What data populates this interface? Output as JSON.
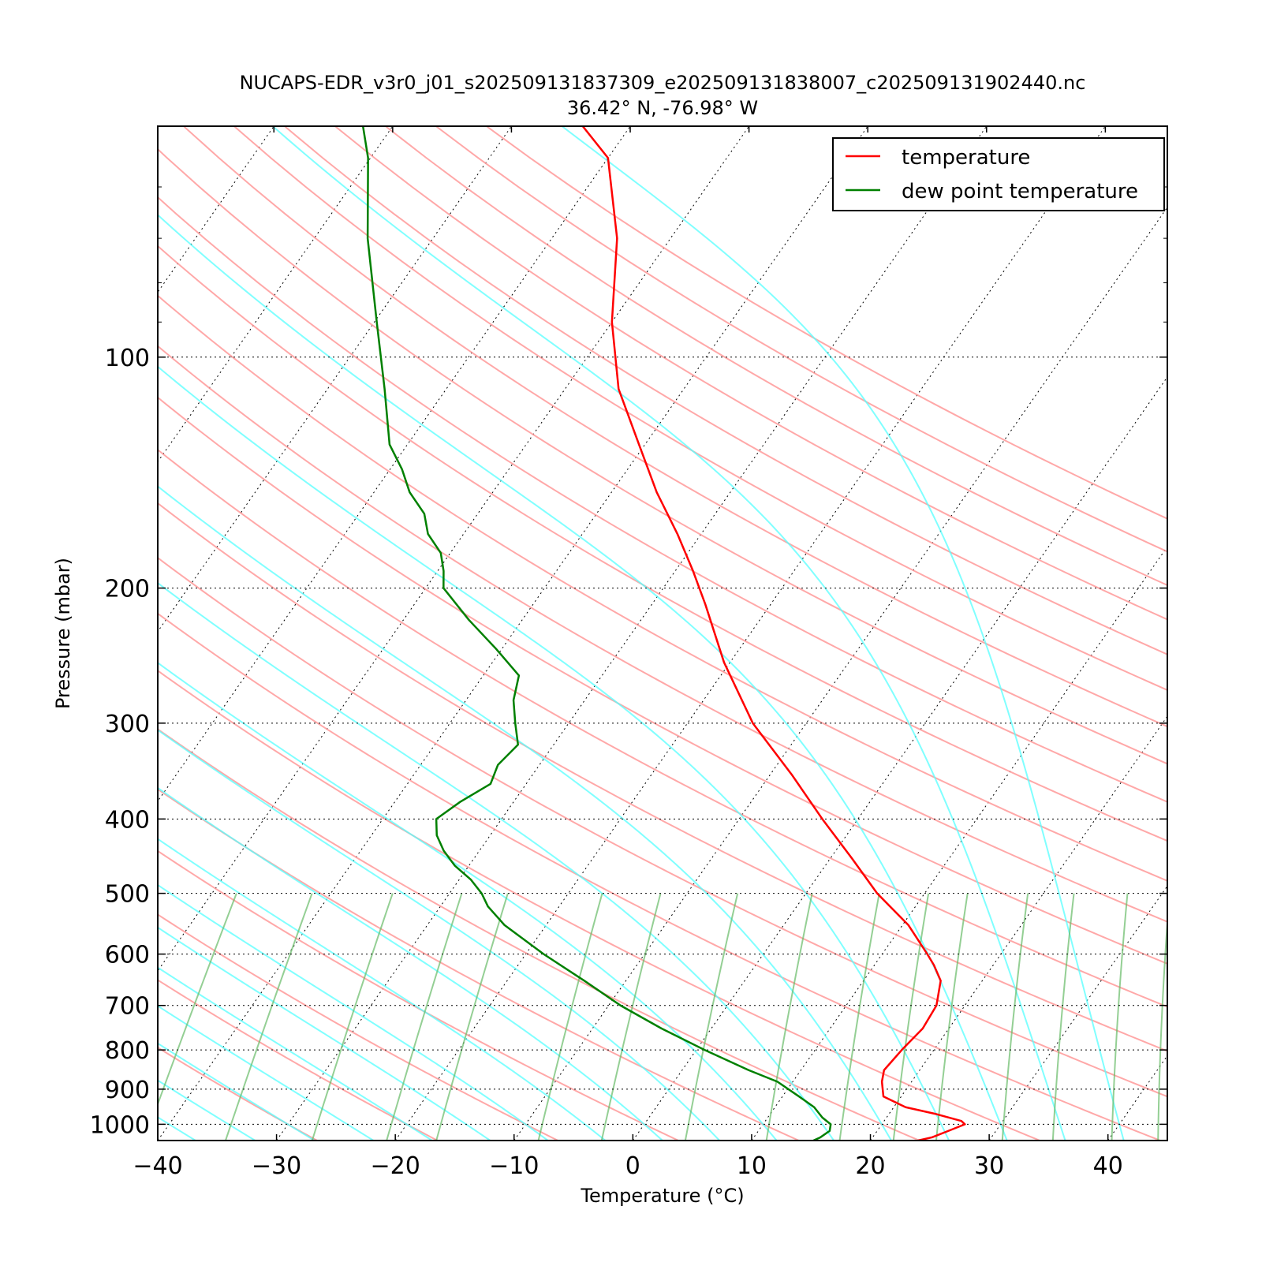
{
  "chart_data": {
    "type": "line",
    "title": "NUCAPS-EDR_v3r0_j01_s202509131837309_e202509131838007_c202509131902440.nc",
    "subtitle": "36.42° N, -76.98° W",
    "xlabel": "Temperature (°C)",
    "ylabel": "Pressure (mbar)",
    "xlim": [
      -40,
      45
    ],
    "ylim": [
      1050,
      50
    ],
    "y_scale": "log",
    "x_ticks": [
      -40,
      -30,
      -20,
      -10,
      0,
      10,
      20,
      30,
      40
    ],
    "x_tick_labels": [
      "−40",
      "−30",
      "−20",
      "−10",
      "0",
      "10",
      "20",
      "30",
      "40"
    ],
    "y_ticks": [
      100,
      200,
      300,
      400,
      500,
      600,
      700,
      800,
      900,
      1000
    ],
    "y_tick_labels": [
      "100",
      "200",
      "300",
      "400",
      "500",
      "600",
      "700",
      "800",
      "900",
      "1000"
    ],
    "legend_position": "top-right",
    "series": [
      {
        "name": "temperature",
        "color": "#ff0000",
        "pressure": [
          1050,
          1040,
          1020,
          1000,
          990,
          970,
          950,
          920,
          880,
          850,
          800,
          750,
          700,
          650,
          620,
          600,
          550,
          500,
          450,
          400,
          350,
          300,
          250,
          210,
          190,
          170,
          150,
          130,
          110,
          90,
          70,
          55,
          50
        ],
        "temperature": [
          24.0,
          25.0,
          26.0,
          27.0,
          26.5,
          24.0,
          21.0,
          18.5,
          17.5,
          17.0,
          17.3,
          17.8,
          17.6,
          16.5,
          15.0,
          13.8,
          10.5,
          6.0,
          1.8,
          -3.0,
          -8.2,
          -14.5,
          -20.5,
          -25.5,
          -28.5,
          -32.0,
          -36.2,
          -40.5,
          -45.5,
          -50.0,
          -54.5,
          -60.0,
          -64.0
        ]
      },
      {
        "name": "dew point temperature",
        "color": "#008000",
        "pressure": [
          1050,
          1040,
          1020,
          1000,
          980,
          950,
          920,
          880,
          850,
          800,
          750,
          700,
          650,
          600,
          550,
          520,
          500,
          480,
          460,
          440,
          420,
          400,
          380,
          360,
          340,
          320,
          300,
          280,
          260,
          240,
          220,
          200,
          190,
          180,
          170,
          160,
          150,
          140,
          130,
          110,
          90,
          70,
          55,
          50
        ],
        "temperature": [
          15.2,
          15.6,
          16.0,
          15.7,
          14.6,
          13.3,
          11.4,
          8.7,
          5.6,
          0.7,
          -4.2,
          -9.0,
          -13.5,
          -18.5,
          -23.5,
          -26.0,
          -27.3,
          -29.0,
          -31.2,
          -33.0,
          -34.5,
          -35.5,
          -34.5,
          -33.0,
          -33.5,
          -33.0,
          -34.5,
          -36.0,
          -37.0,
          -40.5,
          -44.5,
          -48.5,
          -49.5,
          -50.8,
          -53.0,
          -54.5,
          -57.0,
          -59.0,
          -61.5,
          -65.2,
          -69.8,
          -75.5,
          -80.2,
          -82.5
        ]
      }
    ],
    "grid": true,
    "background_lines": {
      "dry_adiabats": true,
      "moist_adiabats": true,
      "mixing_ratio_lines": true,
      "isotherms_dotted": true,
      "colors": {
        "dry_adiabat": "#ff9999",
        "moist_adiabat": "#55ffff",
        "mixing_ratio": "#66bb66"
      }
    }
  }
}
